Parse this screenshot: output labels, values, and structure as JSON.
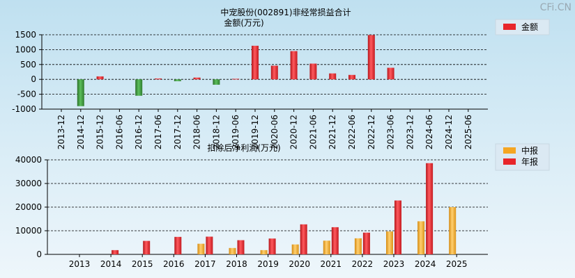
{
  "watermark": "CFi.CN",
  "chart_data": [
    {
      "type": "bar",
      "title": "中宠股份(002891)非经常损益合计",
      "subtitle": "金额(万元)",
      "categories": [
        "2013-12",
        "2014-12",
        "2015-12",
        "2016-06",
        "2016-12",
        "2017-06",
        "2017-12",
        "2018-06",
        "2018-12",
        "2019-06",
        "2019-12",
        "2020-06",
        "2020-12",
        "2021-06",
        "2021-12",
        "2022-06",
        "2022-12",
        "2023-06",
        "2023-12",
        "2024-06",
        "2024-12",
        "2025-06"
      ],
      "series": [
        {
          "name": "金额",
          "values": [
            null,
            -900,
            100,
            null,
            -550,
            30,
            -60,
            60,
            -180,
            20,
            1130,
            460,
            950,
            530,
            200,
            150,
            1490,
            390,
            null,
            null,
            null,
            null
          ]
        }
      ],
      "ylim": [
        -1000,
        1500
      ],
      "yticks": [
        -1000,
        -500,
        0,
        500,
        1000,
        1500
      ],
      "grid": true,
      "legend": "top-right",
      "colors": {
        "positive": "#e8262b",
        "negative": "#3a8f3a"
      }
    },
    {
      "type": "bar",
      "title": "扣除后净利润(万元)",
      "categories": [
        "2013",
        "2014",
        "2015",
        "2016",
        "2017",
        "2018",
        "2019",
        "2020",
        "2021",
        "2022",
        "2023",
        "2024",
        "2025"
      ],
      "series": [
        {
          "name": "中报",
          "values": [
            null,
            null,
            null,
            null,
            4500,
            2700,
            1800,
            4200,
            5800,
            6800,
            9700,
            14000,
            20000
          ],
          "color": "#f5a623"
        },
        {
          "name": "年报",
          "values": [
            null,
            1800,
            5700,
            7400,
            7500,
            6000,
            6700,
            12700,
            11500,
            9200,
            22800,
            38600,
            null
          ],
          "color": "#e8262b"
        }
      ],
      "ylim": [
        0,
        40000
      ],
      "yticks": [
        0,
        10000,
        20000,
        30000,
        40000
      ],
      "grid": true,
      "legend": "top-right"
    }
  ]
}
